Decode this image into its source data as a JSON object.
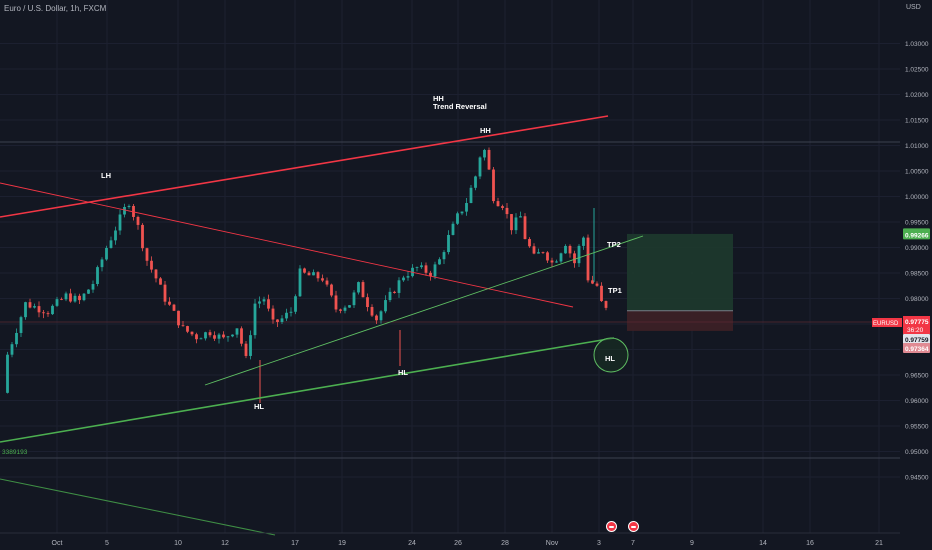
{
  "header": {
    "symbol_title": "Euro / U.S. Dollar, 1h, FXCM",
    "currency": "USD"
  },
  "chart_data": {
    "type": "candlestick",
    "symbol": "EURUSD",
    "y_axis": {
      "ticks": [
        "1.03000",
        "1.02500",
        "1.02000",
        "1.01500",
        "1.01000",
        "1.00500",
        "1.00000",
        "0.99500",
        "0.99000",
        "0.98500",
        "0.98000",
        "0.97500",
        "0.97000",
        "0.96500",
        "0.96000",
        "0.95500",
        "0.95000",
        "0.94500"
      ],
      "range": [
        0.9425,
        1.0355
      ]
    },
    "x_axis": {
      "ticks": [
        "Oct",
        "5",
        "10",
        "12",
        "17",
        "19",
        "24",
        "26",
        "28",
        "Nov",
        "3",
        "7",
        "9",
        "14",
        "16",
        "21"
      ]
    },
    "price_path": [
      [
        0.96,
        0.9615
      ],
      [
        1,
        0.969
      ],
      [
        5,
        0.979
      ],
      [
        10,
        0.9775
      ],
      [
        14,
        0.9805
      ],
      [
        17,
        0.9795
      ],
      [
        20,
        0.983
      ],
      [
        23,
        0.99
      ],
      [
        27,
        0.9975
      ],
      [
        28,
        0.999
      ],
      [
        30,
        0.994
      ],
      [
        32,
        0.9875
      ],
      [
        34,
        0.984
      ],
      [
        36,
        0.98
      ],
      [
        38,
        0.977
      ],
      [
        40,
        0.974
      ],
      [
        43,
        0.9725
      ],
      [
        46,
        0.9735
      ],
      [
        49,
        0.972
      ],
      [
        52,
        0.9745
      ],
      [
        54,
        0.968
      ],
      [
        56,
        0.979
      ],
      [
        58,
        0.98
      ],
      [
        60,
        0.975
      ],
      [
        62,
        0.976
      ],
      [
        64,
        0.9775
      ],
      [
        66,
        0.985
      ],
      [
        68,
        0.9845
      ],
      [
        71,
        0.984
      ],
      [
        74,
        0.978
      ],
      [
        77,
        0.979
      ],
      [
        79,
        0.9825
      ],
      [
        81,
        0.979
      ],
      [
        83,
        0.976
      ],
      [
        86,
        0.9805
      ],
      [
        89,
        0.9845
      ],
      [
        92,
        0.986
      ],
      [
        95,
        0.985
      ],
      [
        97,
        0.9875
      ],
      [
        99,
        0.992
      ],
      [
        101,
        0.996
      ],
      [
        103,
        0.999
      ],
      [
        105,
        1.004
      ],
      [
        106,
        1.008
      ],
      [
        107,
        1.009
      ],
      [
        108,
        1.005
      ],
      [
        109,
        1.0
      ],
      [
        110,
        0.999
      ],
      [
        111,
        0.9985
      ],
      [
        113,
        0.994
      ],
      [
        115,
        0.996
      ],
      [
        116,
        0.992
      ],
      [
        118,
        0.988
      ],
      [
        120,
        0.9895
      ],
      [
        122,
        0.987
      ],
      [
        123,
        0.988
      ],
      [
        125,
        0.991
      ],
      [
        127,
        0.987
      ],
      [
        128,
        0.99
      ],
      [
        129,
        0.992
      ],
      [
        130,
        0.984
      ],
      [
        131,
        0.983
      ],
      [
        132,
        0.9825
      ],
      [
        133,
        0.979
      ],
      [
        133.5,
        0.976
      ],
      [
        134,
        0.97775
      ]
    ],
    "levels": {
      "current_price": "0.97775",
      "countdown": "36:20",
      "entry_price": "0.97759",
      "stop_price": "0.97364",
      "target_price": "0.99266",
      "left_edge_value": "3389193"
    },
    "annotations": {
      "lh": "LH",
      "hh_top": "HH",
      "hh_top_sub": "Trend Reversal",
      "hh_peak": "HH",
      "hl_1": "HL",
      "hl_2": "HL",
      "hl_3": "HL",
      "tp1": "TP1",
      "tp2": "TP2"
    }
  },
  "colors": {
    "background": "#131722",
    "up": "#26a69a",
    "down": "#ef5350",
    "resistance": "#f23645",
    "support": "#4caf50",
    "target_zone": "#1e3a2e",
    "stop_zone": "#3b2026"
  }
}
